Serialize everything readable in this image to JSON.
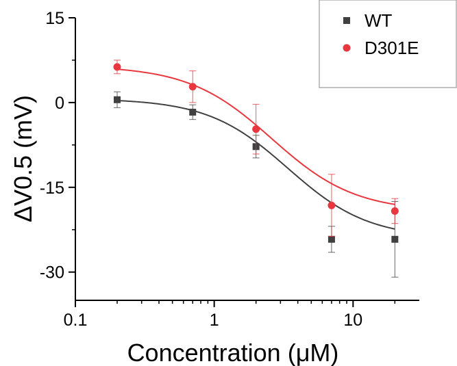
{
  "chart_data": {
    "type": "scatter",
    "xlabel": "Concentration (μM)",
    "ylabel": "ΔV0.5 (mV)",
    "xscale": "log",
    "xlim": [
      0.1,
      30
    ],
    "ylim": [
      -35,
      15
    ],
    "x_ticks": [
      0.1,
      1,
      10
    ],
    "x_tick_labels": [
      "0.1",
      "1",
      "10"
    ],
    "y_ticks": [
      15,
      0,
      -15,
      -30
    ],
    "y_tick_labels": [
      "15",
      "0",
      "-15",
      "-30"
    ],
    "legend_position": "top-right",
    "series": [
      {
        "name": "WT",
        "marker": "square",
        "color": "#404040",
        "x": [
          0.2,
          0.7,
          2,
          7,
          20
        ],
        "y": [
          0.5,
          -1.7,
          -7.8,
          -24.2,
          -24.2
        ],
        "yerr": [
          1.4,
          1.3,
          2.0,
          2.3,
          6.7
        ],
        "fit": {
          "bottom": -24.0,
          "top": 0.7,
          "ec50": 3.4,
          "hill": 1.5
        }
      },
      {
        "name": "D301E",
        "marker": "circle",
        "color": "#e8373e",
        "x": [
          0.2,
          0.7,
          2,
          7,
          20
        ],
        "y": [
          6.3,
          2.8,
          -4.7,
          -18.2,
          -19.2
        ],
        "yerr": [
          1.2,
          2.8,
          4.4,
          5.5,
          2.2
        ],
        "fit": {
          "bottom": -19.3,
          "top": 6.5,
          "ec50": 2.6,
          "hill": 1.45
        }
      }
    ]
  }
}
